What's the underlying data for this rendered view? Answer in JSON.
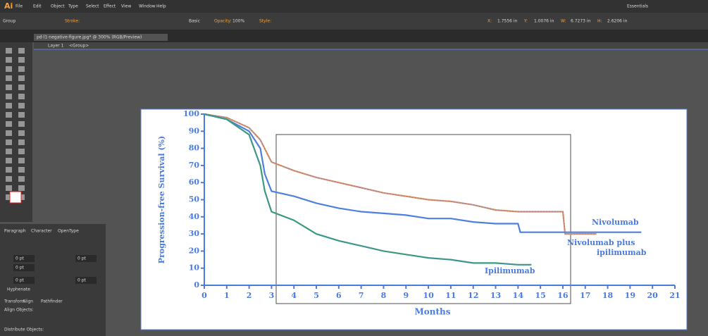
{
  "menu": {
    "logo": "Ai",
    "items": [
      "File",
      "Edit",
      "Object",
      "Type",
      "Select",
      "Effect",
      "View",
      "Window",
      "Help"
    ],
    "workspace": "Essentials"
  },
  "control_bar": {
    "selection": "Group",
    "stroke_label": "Stroke:",
    "brush": "Basic",
    "opacity_label": "Opacity:",
    "opacity": "100%",
    "style_label": "Style:",
    "x_label": "X:",
    "x": "1.7556 in",
    "y_label": "Y:",
    "y": "1.0076 in",
    "w_label": "W:",
    "w": "6.7273 in",
    "h_label": "H:",
    "h": "2.6206 in"
  },
  "document_tab": "pd-l1-negative-figure.jpg* @ 300% (RGB/Preview)",
  "breadcrumb": {
    "layer": "Layer 1",
    "group": "<Group>"
  },
  "paragraph_panel": {
    "tabs": [
      "Paragraph",
      "Character",
      "OpenType"
    ],
    "fields": [
      "0 pt",
      "0 pt",
      "0 pt",
      "0 pt",
      "0 pt"
    ],
    "hyphenate": "Hyphenate"
  },
  "align_panel": {
    "tabs": [
      "Transform",
      "Align",
      "Pathfinder"
    ],
    "align_objects": "Align Objects:",
    "distribute_objects": "Distribute Objects:"
  },
  "chart": {
    "type": "line",
    "y_label": "Progression-free Survival (%)",
    "x_label": "Months",
    "xlim": [
      0,
      21
    ],
    "ylim": [
      0,
      100
    ],
    "xticks": [
      0,
      1,
      2,
      3,
      4,
      5,
      6,
      7,
      8,
      9,
      10,
      11,
      12,
      13,
      14,
      15,
      16,
      17,
      18,
      19,
      20,
      21
    ],
    "yticks": [
      0,
      10,
      20,
      30,
      40,
      50,
      60,
      70,
      80,
      90,
      100
    ],
    "series": [
      {
        "name": "Nivolumab",
        "color": "#d98f6b",
        "x": [
          0,
          1,
          2,
          2.5,
          3,
          4,
          5,
          6,
          7,
          8,
          9,
          10,
          11,
          12,
          13,
          14,
          15,
          16,
          16.1,
          17.5
        ],
        "values": [
          100,
          98,
          92,
          85,
          72,
          67,
          63,
          60,
          57,
          54,
          52,
          50,
          49,
          47,
          44,
          43,
          43,
          43,
          30,
          30
        ]
      },
      {
        "name": "Nivolumab plus ipilimumab",
        "color": "#4f7fe0",
        "x": [
          0,
          1,
          2,
          2.5,
          2.7,
          3,
          4,
          5,
          6,
          7,
          8,
          9,
          10,
          11,
          12,
          13,
          14,
          14.1,
          19.5
        ],
        "values": [
          100,
          97,
          90,
          80,
          65,
          55,
          52,
          48,
          45,
          43,
          42,
          41,
          39,
          39,
          37,
          36,
          36,
          31,
          31
        ]
      },
      {
        "name": "Ipilimumab",
        "color": "#3a9b7a",
        "x": [
          0,
          1,
          2,
          2.5,
          2.7,
          3,
          4,
          5,
          6,
          7,
          8,
          9,
          10,
          11,
          12,
          13,
          14,
          14.6
        ],
        "values": [
          100,
          97,
          88,
          70,
          55,
          43,
          38,
          30,
          26,
          23,
          20,
          18,
          16,
          15,
          13,
          13,
          12,
          12
        ]
      }
    ]
  }
}
